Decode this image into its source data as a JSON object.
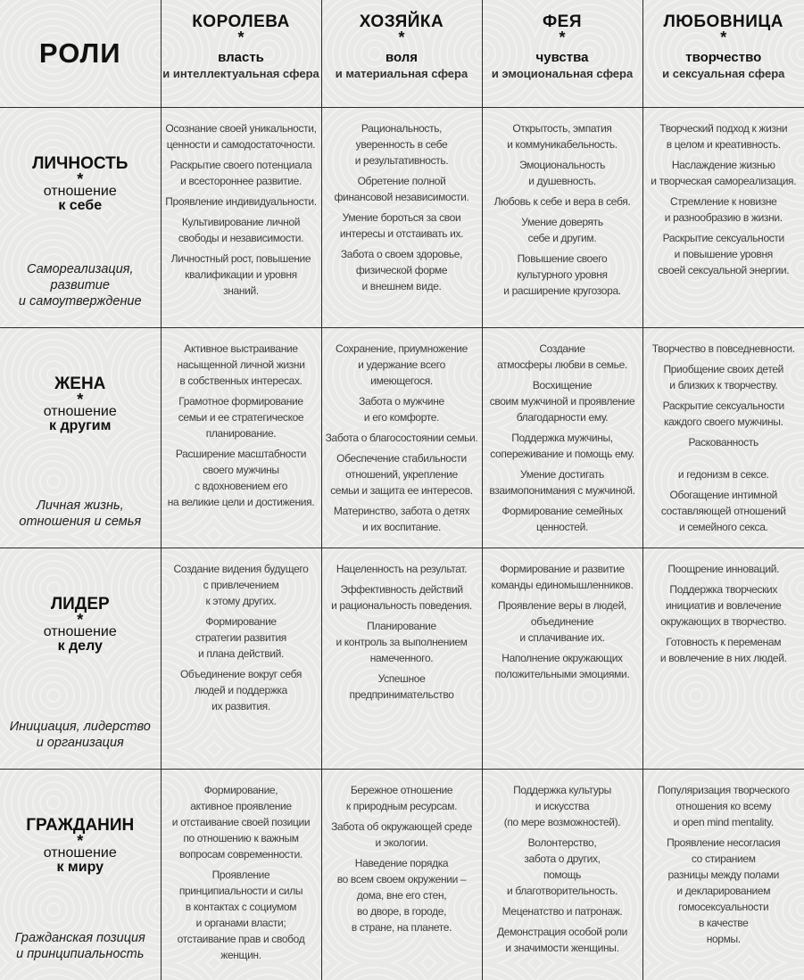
{
  "corner_label": "РОЛИ",
  "columns": [
    {
      "title": "КОРОЛЕВА",
      "star": "*",
      "quality": "власть",
      "sphere": "и интеллектуальная сфера"
    },
    {
      "title": "ХОЗЯЙКА",
      "star": "*",
      "quality": "воля",
      "sphere": "и материальная сфера"
    },
    {
      "title": "ФЕЯ",
      "star": "*",
      "quality": "чувства",
      "sphere": "и эмоциональная сфера"
    },
    {
      "title": "ЛЮБОВНИЦА",
      "star": "*",
      "quality": "творчество",
      "sphere": "и сексуальная сфера"
    }
  ],
  "rows": [
    {
      "title": "ЛИЧНОСТЬ",
      "star": "*",
      "attitude": "отношение",
      "target": "к себе",
      "subtitle": "Самореализация,\nразвитие\nи самоутверждение",
      "cells": [
        [
          "Осознание своей уникальности,\nценности и самодостаточности.",
          "Раскрытие своего потенциала\nи всестороннее развитие.",
          "Проявление индивидуальности.",
          "Культивирование личной\nсвободы и независимости.",
          "Личностный рост, повышение\nквалификации и уровня\nзнаний."
        ],
        [
          "Рациональность,\nуверенность в себе\nи результативность.",
          "Обретение полной\nфинансовой независимости.",
          "Умение бороться за свои\nинтересы и отстаивать их.",
          "Забота о своем здоровье,\nфизической форме\nи внешнем виде."
        ],
        [
          "Открытость, эмпатия\nи коммуникабельность.",
          "Эмоциональность\nи душевность.",
          "Любовь к себе и вера в себя.",
          "Умение доверять\nсебе и другим.",
          "Повышение своего\nкультурного уровня\nи расширение кругозора."
        ],
        [
          "Творческий подход к жизни\nв целом и креативность.",
          "Наслаждение жизнью\nи творческая самореализация.",
          "Стремление к новизне\nи разнообразию в жизни.",
          "Раскрытие сексуальности\nи повышение уровня\nсвоей сексуальной энергии."
        ]
      ]
    },
    {
      "title": "ЖЕНА",
      "star": "*",
      "attitude": "отношение",
      "target": "к другим",
      "subtitle": "Личная жизнь,\nотношения и семья",
      "cells": [
        [
          "Активное выстраивание\nнасыщенной личной жизни\nв собственных интересах.",
          "Грамотное формирование\nсемьи и ее стратегическое\nпланирование.",
          "Расширение масштабности\nсвоего мужчины\nс вдохновением его\nна великие цели и достижения."
        ],
        [
          "Сохранение, приумножение\nи удержание всего\nимеющегося.",
          "Забота о мужчине\nи его комфорте.",
          "Забота о благосостоянии семьи.",
          "Обеспечение стабильности\nотношений, укрепление\nсемьи и защита ее интересов.",
          "Материнство, забота о детях\nи их воспитание."
        ],
        [
          "Создание\nатмосферы любви в семье.",
          "Восхищение\nсвоим мужчиной и проявление\nблагодарности ему.",
          "Поддержка мужчины,\nсопереживание и помощь ему.",
          "Умение достигать\nвзаимопонимания с мужчиной.",
          "Формирование семейных\nценностей."
        ],
        [
          "Творчество в повседневности.",
          "Приобщение своих детей\nи близких к творчеству.",
          "Раскрытие сексуальности\nкаждого своего мужчины.",
          "Раскованность\n\nи гедонизм в сексе.",
          "Обогащение интимной\nсоставляющей отношений\nи семейного секса."
        ]
      ]
    },
    {
      "title": "ЛИДЕР",
      "star": "*",
      "attitude": "отношение",
      "target": "к делу",
      "subtitle": "Инициация, лидерство\nи организация",
      "cells": [
        [
          "Создание видения будущего\nс привлечением\nк этому других.",
          "Формирование\nстратегии развития\nи плана действий.",
          "Объединение вокруг себя\nлюдей и поддержка\nих развития."
        ],
        [
          "Нацеленность на результат.",
          "Эффективность действий\nи рациональность поведения.",
          "Планирование\nи контроль за выполнением\nнамеченного.",
          "Успешное\nпредпринимательство"
        ],
        [
          "Формирование и развитие\nкоманды единомышленников.",
          "Проявление веры в людей,\nобъединение\nи сплачивание их.",
          "Наполнение окружающих\nположительными эмоциями."
        ],
        [
          "Поощрение инноваций.",
          "Поддержка творческих\nинициатив и вовлечение\nокружающих в творчество.",
          "Готовность к переменам\nи вовлечение в них людей."
        ]
      ]
    },
    {
      "title": "ГРАЖДАНИН",
      "star": "*",
      "attitude": "отношение",
      "target": "к миру",
      "subtitle": "Гражданская позиция\nи принципиальность",
      "cells": [
        [
          "Формирование,\nактивное проявление\nи отстаивание своей позиции\nпо отношению к важным\nвопросам современности.",
          "Проявление\nпринципиальности и силы\nв контактах с социумом\nи органами власти;\nотстаивание прав и свобод\nженщин."
        ],
        [
          "Бережное отношение\nк природным ресурсам.",
          "Забота об окружающей среде\nи экологии.",
          "Наведение порядка\nво всем своем окружении –\nдома, вне его стен,\nво дворе, в городе,\nв стране, на планете."
        ],
        [
          "Поддержка культуры\nи искусства\n(по мере возможностей).",
          "Волонтерство,\nзабота о других,\nпомощь\nи благотворительность.",
          "Меценатство и патронаж.",
          "Демонстрация особой роли\nи значимости женщины."
        ],
        [
          "Популяризация творческого\nотношения ко всему\nи open mind mentality.",
          "Проявление несогласия\nсо стиранием\nразницы между полами\nи декларированием\nгомосексуальности\nв качестве\nнормы."
        ]
      ]
    }
  ]
}
